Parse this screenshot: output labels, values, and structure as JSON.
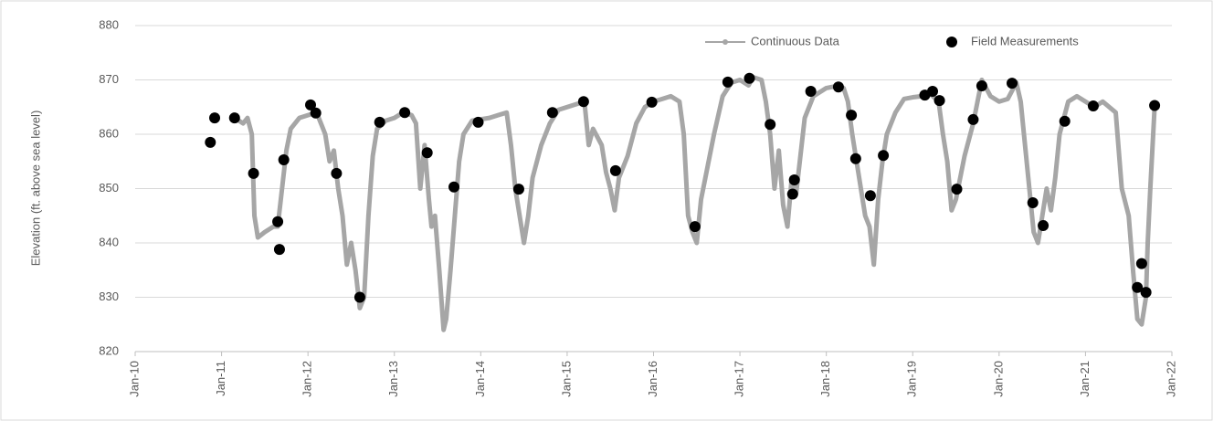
{
  "chart_data": {
    "type": "line",
    "y_label": "Elevation (ft. above sea level)",
    "xlim": [
      2010,
      2022
    ],
    "xticks": [
      {
        "value": 2010,
        "label": "Jan-10"
      },
      {
        "value": 2011,
        "label": "Jan-11"
      },
      {
        "value": 2012,
        "label": "Jan-12"
      },
      {
        "value": 2013,
        "label": "Jan-13"
      },
      {
        "value": 2014,
        "label": "Jan-14"
      },
      {
        "value": 2015,
        "label": "Jan-15"
      },
      {
        "value": 2016,
        "label": "Jan-16"
      },
      {
        "value": 2017,
        "label": "Jan-17"
      },
      {
        "value": 2018,
        "label": "Jan-18"
      },
      {
        "value": 2019,
        "label": "Jan-19"
      },
      {
        "value": 2020,
        "label": "Jan-20"
      },
      {
        "value": 2021,
        "label": "Jan-21"
      },
      {
        "value": 2022,
        "label": "Jan-22"
      }
    ],
    "ylim": [
      820,
      880
    ],
    "yticks": [
      820,
      830,
      840,
      850,
      860,
      870,
      880
    ],
    "grid": true,
    "legend": "top-right",
    "series": [
      {
        "name": "Continuous Data",
        "type": "line",
        "color": "#a6a6a6",
        "x": [
          2011.15,
          2011.25,
          2011.3,
          2011.35,
          2011.38,
          2011.42,
          2011.5,
          2011.6,
          2011.65,
          2011.7,
          2011.75,
          2011.8,
          2011.9,
          2012.0,
          2012.1,
          2012.15,
          2012.2,
          2012.25,
          2012.3,
          2012.35,
          2012.4,
          2012.45,
          2012.5,
          2012.55,
          2012.6,
          2012.65,
          2012.7,
          2012.75,
          2012.8,
          2012.9,
          2013.0,
          2013.1,
          2013.2,
          2013.25,
          2013.3,
          2013.35,
          2013.4,
          2013.43,
          2013.47,
          2013.52,
          2013.57,
          2013.6,
          2013.65,
          2013.7,
          2013.75,
          2013.8,
          2013.9,
          2014.1,
          2014.2,
          2014.3,
          2014.35,
          2014.4,
          2014.45,
          2014.5,
          2014.55,
          2014.6,
          2014.7,
          2014.8,
          2014.9,
          2015.0,
          2015.1,
          2015.2,
          2015.25,
          2015.3,
          2015.4,
          2015.45,
          2015.5,
          2015.55,
          2015.6,
          2015.7,
          2015.8,
          2015.9,
          2016.0,
          2016.1,
          2016.2,
          2016.3,
          2016.35,
          2016.4,
          2016.45,
          2016.5,
          2016.55,
          2016.6,
          2016.7,
          2016.8,
          2016.9,
          2017.0,
          2017.1,
          2017.15,
          2017.25,
          2017.3,
          2017.35,
          2017.4,
          2017.45,
          2017.5,
          2017.55,
          2017.6,
          2017.65,
          2017.7,
          2017.75,
          2017.85,
          2018.0,
          2018.1,
          2018.2,
          2018.25,
          2018.3,
          2018.35,
          2018.4,
          2018.45,
          2018.5,
          2018.55,
          2018.6,
          2018.65,
          2018.7,
          2018.8,
          2018.9,
          2019.0,
          2019.1,
          2019.2,
          2019.3,
          2019.35,
          2019.4,
          2019.45,
          2019.5,
          2019.6,
          2019.7,
          2019.8,
          2019.9,
          2020.0,
          2020.1,
          2020.2,
          2020.25,
          2020.3,
          2020.35,
          2020.4,
          2020.45,
          2020.5,
          2020.55,
          2020.6,
          2020.65,
          2020.7,
          2020.8,
          2020.9,
          2021.0,
          2021.1,
          2021.2,
          2021.35,
          2021.42,
          2021.5,
          2021.55,
          2021.6,
          2021.65,
          2021.7,
          2021.72,
          2021.75,
          2021.8
        ],
        "values": [
          863,
          862,
          863,
          860,
          845,
          841,
          842,
          843,
          843,
          850,
          857,
          861,
          863,
          863.5,
          864,
          862,
          860,
          855,
          857,
          850,
          845,
          836,
          840,
          835,
          828,
          830,
          845,
          856,
          861,
          862.5,
          863,
          864,
          863.5,
          862,
          850,
          858,
          848,
          843,
          845,
          835,
          824,
          826,
          835,
          845,
          855,
          860,
          862.5,
          863,
          863.5,
          864,
          858,
          850,
          845,
          840,
          845,
          852,
          858,
          862,
          864.5,
          865,
          865.5,
          866,
          858,
          861,
          858,
          853,
          850,
          846,
          852,
          856,
          862,
          865,
          866,
          866.5,
          867,
          866,
          860,
          845,
          842,
          840,
          848,
          852,
          860,
          867,
          869.5,
          870,
          869,
          870.5,
          870,
          866,
          860,
          850,
          857,
          847,
          843,
          852,
          849,
          856,
          863,
          867,
          868.5,
          868.8,
          868.5,
          866,
          860,
          855,
          850,
          845,
          843,
          836,
          848,
          855,
          860,
          864,
          866.5,
          866.8,
          867,
          867.5,
          866,
          860,
          855,
          846,
          848,
          856,
          862,
          870,
          867,
          866,
          866.5,
          869.5,
          866,
          858,
          850,
          842,
          840,
          845,
          850,
          846,
          852,
          860,
          866,
          867,
          866,
          865,
          866,
          864,
          850,
          845,
          835,
          826,
          825,
          830,
          840,
          850,
          865
        ]
      },
      {
        "name": "Field Measurements",
        "type": "scatter",
        "color": "#000000",
        "x": [
          2010.87,
          2010.92,
          2011.15,
          2011.37,
          2011.65,
          2011.67,
          2011.72,
          2012.03,
          2012.09,
          2012.33,
          2012.6,
          2012.83,
          2013.12,
          2013.38,
          2013.69,
          2013.97,
          2014.44,
          2014.83,
          2015.19,
          2015.56,
          2015.98,
          2016.48,
          2016.86,
          2017.11,
          2017.35,
          2017.61,
          2017.63,
          2017.82,
          2018.14,
          2018.29,
          2018.34,
          2018.51,
          2018.66,
          2019.14,
          2019.23,
          2019.31,
          2019.51,
          2019.7,
          2019.8,
          2020.15,
          2020.39,
          2020.51,
          2020.76,
          2021.09,
          2021.6,
          2021.65,
          2021.7,
          2021.8
        ],
        "values": [
          858.5,
          863,
          863,
          852.8,
          843.9,
          838.8,
          855.3,
          865.4,
          863.9,
          852.8,
          830,
          862.2,
          864,
          856.6,
          850.3,
          862.2,
          849.9,
          864,
          866,
          853.3,
          865.9,
          843,
          869.6,
          870.3,
          861.8,
          849,
          851.6,
          867.9,
          868.7,
          863.5,
          855.5,
          848.7,
          856.1,
          867.2,
          867.9,
          866.2,
          849.9,
          862.7,
          868.9,
          869.4,
          847.4,
          843.2,
          862.4,
          865.2,
          831.8,
          836.2,
          830.9,
          865.3
        ]
      }
    ]
  }
}
